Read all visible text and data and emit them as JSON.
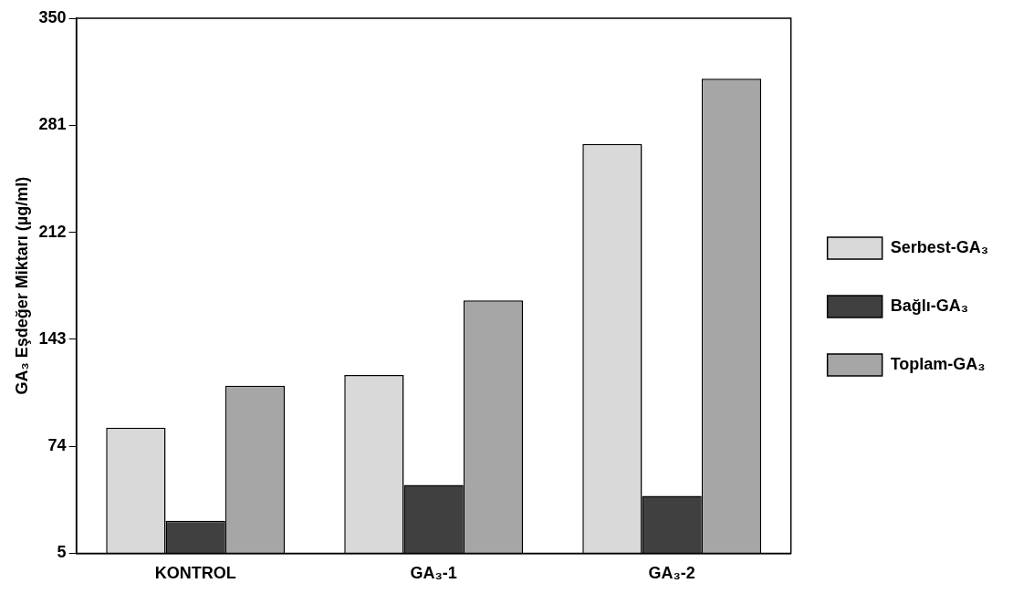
{
  "chart_data": {
    "type": "bar",
    "ylabel": "GA₃ Eşdeğer Miktarı (µg/ml)",
    "categories": [
      "KONTROL",
      "GA₃-1",
      "GA₃-2"
    ],
    "series": [
      {
        "name": "Serbest-GA₃",
        "color": "#d9d9d9",
        "values": [
          86,
          120,
          269
        ]
      },
      {
        "name": "Bağlı-GA₃",
        "color": "#404040",
        "values": [
          26,
          49,
          42
        ]
      },
      {
        "name": "Toplam-GA₃",
        "color": "#a6a6a6",
        "values": [
          113,
          168,
          311
        ]
      }
    ],
    "ylim": [
      5,
      350
    ],
    "yticks": [
      5,
      74,
      143,
      212,
      281,
      350
    ],
    "grid": false,
    "legend": "right"
  }
}
